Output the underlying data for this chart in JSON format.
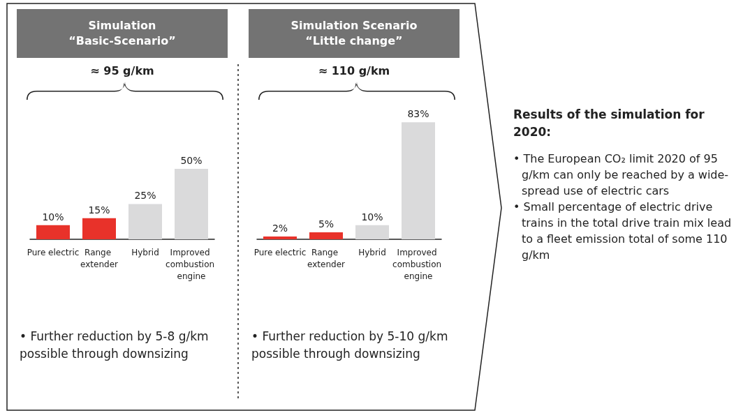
{
  "chart_data": [
    {
      "type": "bar",
      "title": "Simulation\n“Basic-Scenario”",
      "subtitle": "≈ 95 g/km",
      "categories": [
        "Pure electric",
        "Range extender",
        "Hybrid",
        "Improved combustion engine"
      ],
      "values": [
        10,
        15,
        25,
        50
      ],
      "value_labels": [
        "10%",
        "15%",
        "25%",
        "50%"
      ],
      "colors": [
        "#e8322a",
        "#e8322a",
        "#dadadb",
        "#dadadb"
      ],
      "annotations": [
        "• Further reduction by 5-8 g/km possible through downsizing"
      ]
    },
    {
      "type": "bar",
      "title": "Simulation Scenario\n“Little change”",
      "subtitle": "≈ 110 g/km",
      "categories": [
        "Pure electric",
        "Range extender",
        "Hybrid",
        "Improved combustion engine"
      ],
      "values": [
        2,
        5,
        10,
        83
      ],
      "value_labels": [
        "2%",
        "5%",
        "10%",
        "83%"
      ],
      "colors": [
        "#e8322a",
        "#e8322a",
        "#dadadb",
        "#dadadb"
      ],
      "annotations": [
        "• Further reduction by 5-10 g/km possible through downsizing"
      ]
    },
    {
      "type": "other",
      "title": "Results of the simulation for 2020:",
      "annotations": [
        "• The European CO₂ limit 2020 of 95 g/km can only be reached by a wide-spread use of electric cars",
        "• Small percentage of electric drive trains in the total drive train mix lead to a fleet emission total of some 110 g/km"
      ]
    }
  ]
}
